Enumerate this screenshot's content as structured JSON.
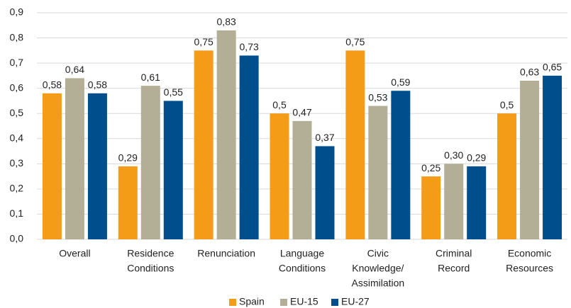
{
  "chart_data": {
    "type": "bar",
    "categories": [
      [
        "Overall"
      ],
      [
        "Residence",
        "Conditions"
      ],
      [
        "Renunciation"
      ],
      [
        "Language",
        "Conditions"
      ],
      [
        "Civic",
        "Knowledge/",
        "Assimilation"
      ],
      [
        "Criminal",
        "Record"
      ],
      [
        "Economic",
        "Resources"
      ]
    ],
    "series": [
      {
        "name": "Spain",
        "color": "#f49b17",
        "values": [
          0.58,
          0.29,
          0.75,
          0.5,
          0.75,
          0.25,
          0.5
        ],
        "value_labels": [
          "0,58",
          "0,29",
          "0,75",
          "0,5",
          "0,75",
          "0,25",
          "0,5"
        ]
      },
      {
        "name": "EU-15",
        "color": "#b3ae96",
        "values": [
          0.64,
          0.61,
          0.83,
          0.47,
          0.53,
          0.3,
          0.63
        ],
        "value_labels": [
          "0,64",
          "0,61",
          "0,83",
          "0,47",
          "0,53",
          "0,30",
          "0,63"
        ]
      },
      {
        "name": "EU-27",
        "color": "#004f8c",
        "values": [
          0.58,
          0.55,
          0.73,
          0.37,
          0.59,
          0.29,
          0.65
        ],
        "value_labels": [
          "0,58",
          "0,55",
          "0,73",
          "0,37",
          "0,59",
          "0,29",
          "0,65"
        ]
      }
    ],
    "ylim": [
      0,
      0.9
    ],
    "yticks": [
      {
        "value": 0,
        "label": "0,0"
      },
      {
        "value": 0.1,
        "label": "0,1"
      },
      {
        "value": 0.2,
        "label": "0,2"
      },
      {
        "value": 0.3,
        "label": "0,3"
      },
      {
        "value": 0.4,
        "label": "0,4"
      },
      {
        "value": 0.5,
        "label": "0,5"
      },
      {
        "value": 0.6,
        "label": "0,6"
      },
      {
        "value": 0.7,
        "label": "0,7"
      },
      {
        "value": 0.8,
        "label": "0,8"
      },
      {
        "value": 0.9,
        "label": "0,9"
      }
    ],
    "grid": true,
    "legend": "bottom"
  }
}
